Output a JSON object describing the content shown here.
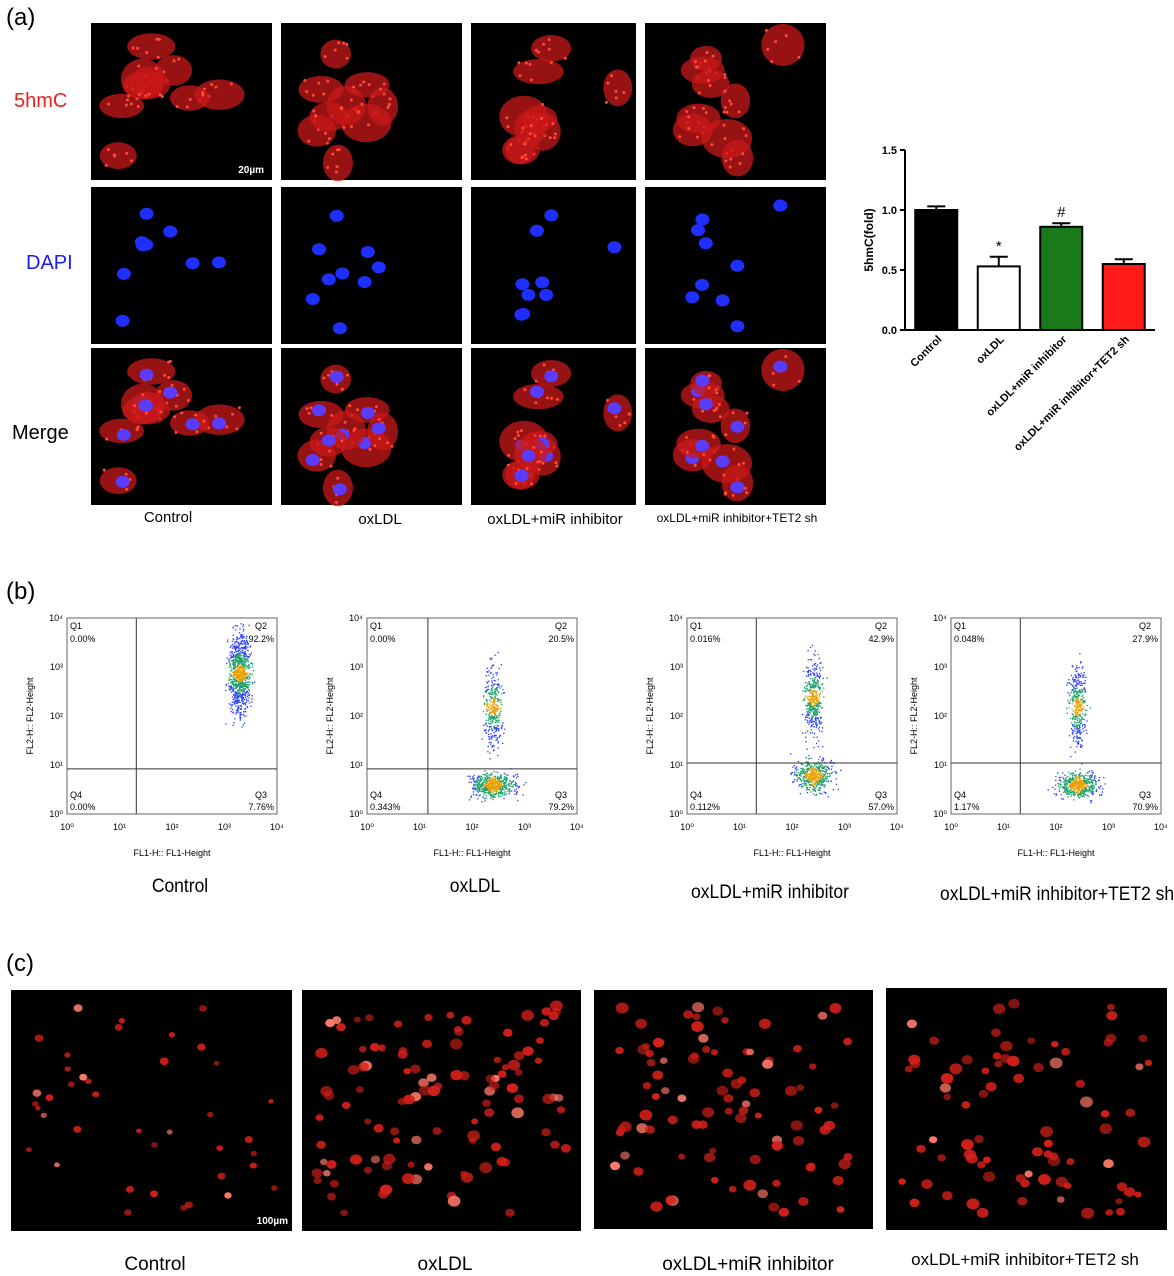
{
  "panel_a": {
    "letter": "(a)",
    "rows": [
      "5hmC",
      "DAPI",
      "Merge"
    ],
    "row_colors": [
      "#e8201e",
      "#1a1aff",
      "#000000"
    ],
    "columns": [
      "Control",
      "oxLDL",
      "oxLDL+miR inhibitor",
      "oxLDL+miR inhibitor+TET2 sh"
    ],
    "scale_bar": "20µm"
  },
  "chart_data": {
    "type": "bar",
    "categories": [
      "Control",
      "oxLDL",
      "oxLDL+miR inhibitor",
      "oxLDL+miR inhibitor+TET2 sh"
    ],
    "values": [
      1.0,
      0.53,
      0.86,
      0.55
    ],
    "errors": [
      0.03,
      0.08,
      0.03,
      0.04
    ],
    "colors": [
      "#000000",
      "#ffffff",
      "#1a7a1a",
      "#ff1a1a"
    ],
    "annotations": [
      "",
      "*",
      "#",
      ""
    ],
    "ylabel": "5hmC(fold)",
    "ylim": [
      0,
      1.5
    ],
    "yticks": [
      "0.0",
      "0.5",
      "1.0",
      "1.5"
    ]
  },
  "panel_b": {
    "letter": "(b)",
    "xlabel": "FL1-H:: FL1-Height",
    "ylabel": "FL2-H:: FL2-Height",
    "plots": [
      {
        "caption": "Control",
        "q1": "0.00%",
        "q2": "92.2%",
        "q3": "7.76%",
        "q4": "0.00%"
      },
      {
        "caption": "oxLDL",
        "q1": "0.00%",
        "q2": "20.5%",
        "q3": "79.2%",
        "q4": "0.343%"
      },
      {
        "caption": "oxLDL+miR inhibitor",
        "q1": "0.016%",
        "q2": "42.9%",
        "q3": "57.0%",
        "q4": "0.112%"
      },
      {
        "caption": "oxLDL+miR inhibitor+TET2 sh",
        "q1": "0.048%",
        "q2": "27.9%",
        "q3": "70.9%",
        "q4": "1.17%"
      }
    ],
    "quad_labels": [
      "Q1",
      "Q2",
      "Q3",
      "Q4"
    ]
  },
  "panel_c": {
    "letter": "(c)",
    "captions": [
      "Control",
      "oxLDL",
      "oxLDL+miR inhibitor",
      "oxLDL+miR inhibitor+TET2 sh"
    ],
    "scale_bar": "100µm"
  }
}
